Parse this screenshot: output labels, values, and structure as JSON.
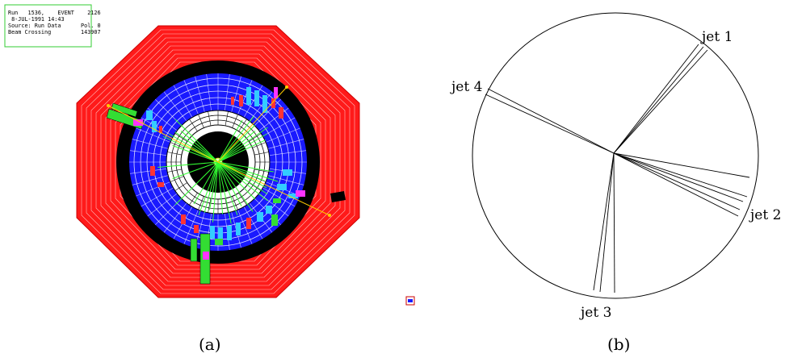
{
  "figure_a": {
    "caption": "(a)",
    "info_box": {
      "line1": "Run   1536,    EVENT    2126",
      "line2": " 8-JUL-1991 14:43",
      "line3": "Source: Run Data      Pol. 0",
      "line4": "Beam Crossing         143907"
    },
    "colors": {
      "muon": "#ff0000",
      "hadron": "#0000ff",
      "coil": "#000000",
      "em": "#ffffff",
      "track": "#00ff00",
      "cyan": "#33ccff",
      "magenta": "#ff00ff",
      "outline": "#ff66ff"
    }
  },
  "figure_b": {
    "caption": "(b)",
    "jets": [
      {
        "label": "jet 1"
      },
      {
        "label": "jet 2"
      },
      {
        "label": "jet 3"
      },
      {
        "label": "jet 4"
      }
    ]
  }
}
